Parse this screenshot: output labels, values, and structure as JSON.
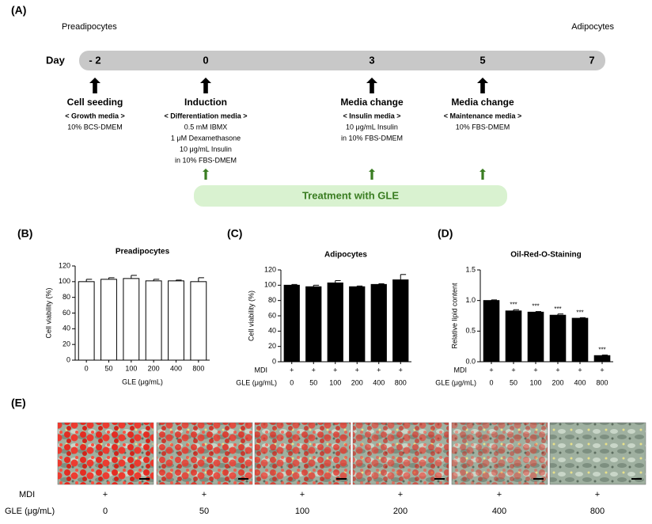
{
  "panel_a": {
    "label": "(A)",
    "start_label": "Preadipocytes",
    "end_label": "Adipocytes",
    "day_label": "Day",
    "days": [
      "- 2",
      "0",
      "3",
      "5",
      "7"
    ],
    "steps": [
      {
        "title": "Cell seeding",
        "media": "< Growth media >",
        "lines": [
          "10% BCS-DMEM"
        ]
      },
      {
        "title": "Induction",
        "media": "< Differentiation media >",
        "lines": [
          "0.5 mM IBMX",
          "1 μM Dexamethasone",
          "10 μg/mL Insulin",
          "in 10% FBS-DMEM"
        ]
      },
      {
        "title": "Media change",
        "media": "< Insulin media >",
        "lines": [
          "10 μg/mL Insulin",
          "in 10% FBS-DMEM"
        ]
      },
      {
        "title": "Media change",
        "media": "< Maintenance media >",
        "lines": [
          "10% FBS-DMEM"
        ]
      }
    ],
    "treatment": "Treatment with GLE"
  },
  "chart_data": [
    {
      "type": "bar",
      "panel": "(B)",
      "title": "Preadipocytes",
      "y_label": "Cell viability (%)",
      "x_label": "GLE (μg/mL)",
      "categories": [
        "0",
        "50",
        "100",
        "200",
        "400",
        "800"
      ],
      "values": [
        100,
        103,
        104,
        101,
        101,
        100
      ],
      "errors": [
        3,
        2,
        4,
        2,
        1,
        5
      ],
      "color": "#ffffff",
      "edge_color": "#000000",
      "ylim": [
        0,
        120
      ],
      "yticks": [
        0,
        20,
        40,
        60,
        80,
        100,
        120
      ]
    },
    {
      "type": "bar",
      "panel": "(C)",
      "title": "Adipocytes",
      "y_label": "Cell viability (%)",
      "x_label": "GLE (μg/mL)",
      "mdi": {
        "label": "MDI",
        "values": [
          "+",
          "+",
          "+",
          "+",
          "+",
          "+"
        ]
      },
      "categories": [
        "0",
        "50",
        "100",
        "200",
        "400",
        "800"
      ],
      "values": [
        100,
        98,
        103,
        98,
        101,
        107
      ],
      "errors": [
        1,
        2,
        3,
        1,
        1,
        7
      ],
      "color": "#000000",
      "edge_color": "#000000",
      "ylim": [
        0,
        120
      ],
      "yticks": [
        0,
        20,
        40,
        60,
        80,
        100,
        120
      ]
    },
    {
      "type": "bar",
      "panel": "(D)",
      "title": "Oil-Red-O-Staining",
      "y_label": "Relative lipid content",
      "x_label": "GLE (μg/mL)",
      "mdi": {
        "label": "MDI",
        "values": [
          "+",
          "+",
          "+",
          "+",
          "+",
          "+"
        ]
      },
      "categories": [
        "0",
        "50",
        "100",
        "200",
        "400",
        "800"
      ],
      "values": [
        1.0,
        0.83,
        0.81,
        0.76,
        0.71,
        0.1
      ],
      "errors": [
        0.01,
        0.02,
        0.01,
        0.02,
        0.01,
        0.01
      ],
      "significance": [
        null,
        "***",
        "***",
        "***",
        "***",
        "***"
      ],
      "color": "#000000",
      "edge_color": "#000000",
      "ylim": [
        0,
        1.5
      ],
      "yticks": [
        {
          "value": 0,
          "label": "0.0"
        },
        0.5,
        {
          "value": 1,
          "label": "1.0"
        },
        1.5
      ]
    }
  ],
  "panel_e": {
    "label": "(E)",
    "rows": [
      {
        "label": "MDI",
        "values": [
          "+",
          "+",
          "+",
          "+",
          "+",
          "+"
        ]
      },
      {
        "label": "GLE (μg/mL)",
        "values": [
          "0",
          "50",
          "100",
          "200",
          "400",
          "800"
        ]
      }
    ]
  }
}
